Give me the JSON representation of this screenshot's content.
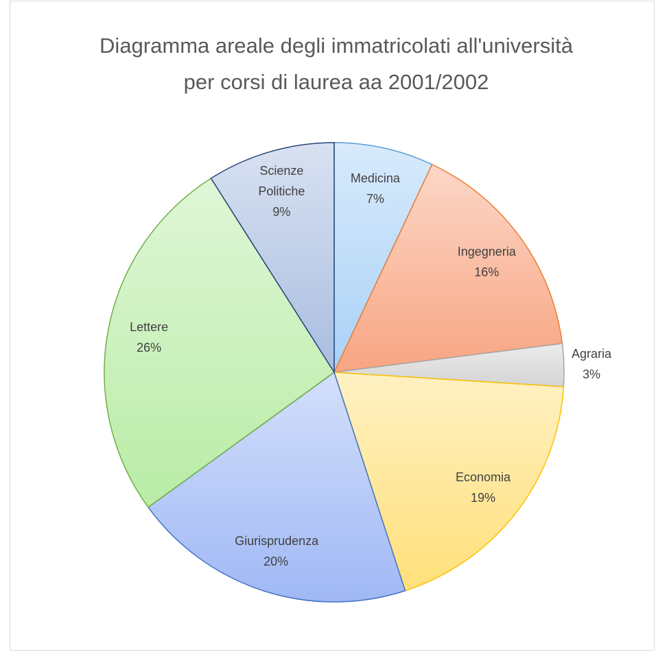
{
  "chart_data": {
    "type": "pie",
    "title": "Diagramma areale degli immatricolati all'università per corsi di laurea aa 2001/2002",
    "categories": [
      "Medicina",
      "Ingegneria",
      "Agraria",
      "Economia",
      "Giurisprudenza",
      "Lettere",
      "Scienze Politiche"
    ],
    "values": [
      7,
      16,
      3,
      19,
      20,
      26,
      9
    ],
    "value_labels": [
      "7%",
      "16%",
      "3%",
      "19%",
      "20%",
      "26%",
      "9%"
    ],
    "colors": [
      "#a9d1f7",
      "#f8a582",
      "#d4d4d4",
      "#ffe07a",
      "#9fb8f5",
      "#b9eca6",
      "#a9bde0"
    ],
    "edge_colors": [
      "#5b9bd5",
      "#ed7d31",
      "#a5a5a5",
      "#ffc000",
      "#4472c4",
      "#70ad47",
      "#264478"
    ]
  }
}
